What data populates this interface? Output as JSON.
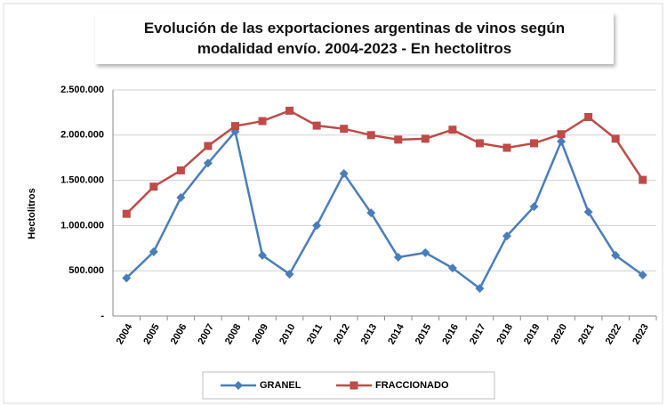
{
  "chart_data": {
    "type": "line",
    "title": "Evolución de las exportaciones argentinas de vinos según modalidad envío. 2004-2023 - En hectolitros",
    "y_label": "Hectolitros",
    "categories": [
      "2004",
      "2005",
      "2006",
      "2007",
      "2008",
      "2009",
      "2010",
      "2011",
      "2012",
      "2013",
      "2014",
      "2015",
      "2016",
      "2017",
      "2018",
      "2019",
      "2020",
      "2021",
      "2022",
      "2023"
    ],
    "series": [
      {
        "name": "GRANEL",
        "color": "#4a7ebb",
        "marker": "diamond",
        "values": [
          420000,
          710000,
          1310000,
          1690000,
          2040000,
          670000,
          463000,
          1000000,
          1575000,
          1140000,
          650000,
          700000,
          530000,
          305000,
          885000,
          1210000,
          1930000,
          1150000,
          670000,
          453000
        ]
      },
      {
        "name": "FRACCIONADO",
        "color": "#be4b48",
        "marker": "square",
        "values": [
          1130000,
          1430000,
          1610000,
          1880000,
          2100000,
          2155000,
          2270000,
          2105000,
          2070000,
          2000000,
          1950000,
          1960000,
          2060000,
          1910000,
          1860000,
          1910000,
          2010000,
          2200000,
          1960000,
          1505000
        ]
      }
    ],
    "ylim": [
      0,
      2500000
    ],
    "yticks": [
      {
        "value": 0,
        "label": "-"
      },
      {
        "value": 500000,
        "label": "500.000"
      },
      {
        "value": 1000000,
        "label": "1.000.000"
      },
      {
        "value": 1500000,
        "label": "1.500.000"
      },
      {
        "value": 2000000,
        "label": "2.000.000"
      },
      {
        "value": 2500000,
        "label": "2.500.000"
      }
    ],
    "grid": true,
    "legend": "bottom"
  }
}
